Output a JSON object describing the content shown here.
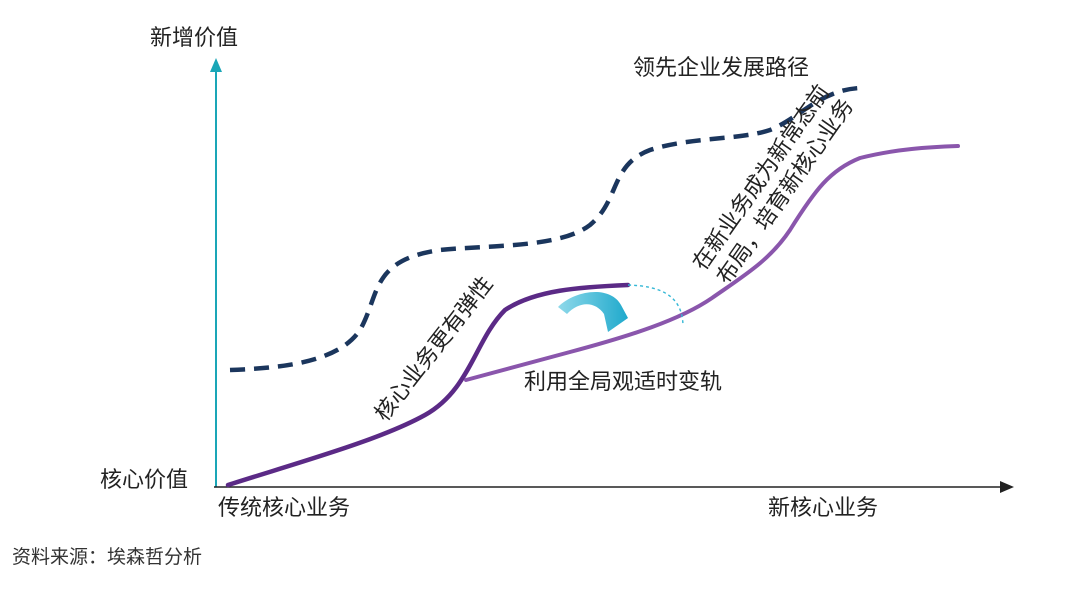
{
  "axes": {
    "y_top_label": "新增价值",
    "y_bottom_label": "核心价值",
    "x_left_label": "传统核心业务",
    "x_right_label": "新核心业务"
  },
  "annotations": {
    "leader_path": "领先企业发展路径",
    "core_resilience": "核心业务更有弹性",
    "switch_tracks": "利用全局观适时变轨",
    "new_business_line1": "在新业务成为新常态前",
    "new_business_line2": "布局，培育新核心业务"
  },
  "source": "资料来源：埃森哲分析",
  "colors": {
    "axis": "#1aa6b7",
    "dashed_path": "#1b365d",
    "curve": "#8a56ac",
    "curve_dark": "#5b2a86",
    "arrow": "#35b8d6"
  }
}
